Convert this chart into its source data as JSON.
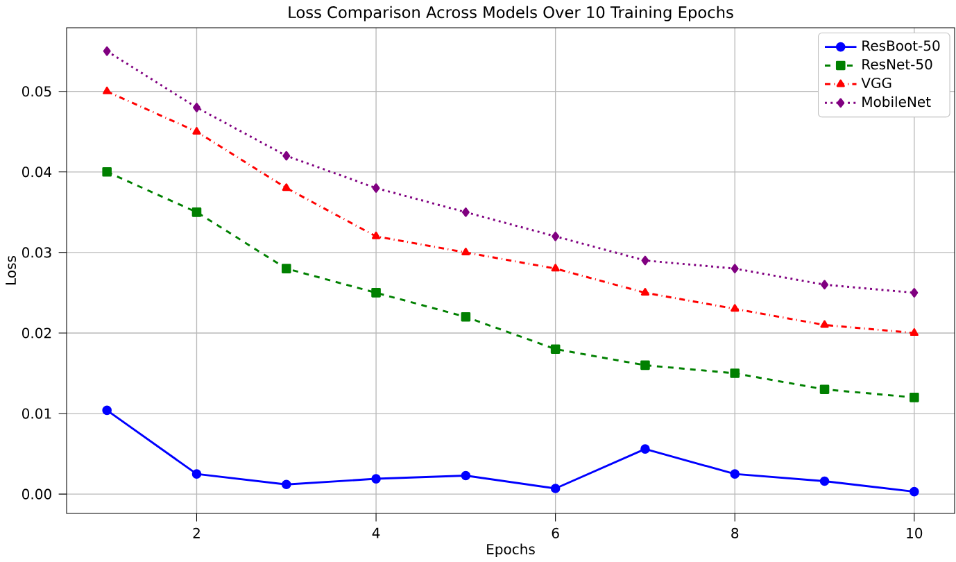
{
  "chart_data": {
    "type": "line",
    "title": "Loss Comparison Across Models Over 10 Training Epochs",
    "xlabel": "Epochs",
    "ylabel": "Loss",
    "x": [
      1,
      2,
      3,
      4,
      5,
      6,
      7,
      8,
      9,
      10
    ],
    "series": [
      {
        "name": "ResBoot-50",
        "color": "#0000ff",
        "marker": "circle",
        "line_style": "solid",
        "values": [
          0.0104,
          0.0025,
          0.0012,
          0.0019,
          0.0023,
          0.0007,
          0.0056,
          0.0025,
          0.0016,
          0.0003
        ]
      },
      {
        "name": "ResNet-50",
        "color": "#008000",
        "marker": "square",
        "line_style": "dashed",
        "values": [
          0.04,
          0.035,
          0.028,
          0.025,
          0.022,
          0.018,
          0.016,
          0.015,
          0.013,
          0.012
        ]
      },
      {
        "name": "VGG",
        "color": "#ff0000",
        "marker": "triangle",
        "line_style": "dashdot",
        "values": [
          0.05,
          0.045,
          0.038,
          0.032,
          0.03,
          0.028,
          0.025,
          0.023,
          0.021,
          0.02
        ]
      },
      {
        "name": "MobileNet",
        "color": "#800080",
        "marker": "diamond",
        "line_style": "dotted",
        "values": [
          0.055,
          0.048,
          0.042,
          0.038,
          0.035,
          0.032,
          0.029,
          0.028,
          0.026,
          0.025
        ]
      }
    ],
    "xlim": [
      0.55,
      10.45
    ],
    "ylim": [
      -0.0024,
      0.0579
    ],
    "xticks": [
      2,
      4,
      6,
      8,
      10
    ],
    "yticks": [
      {
        "value": 0,
        "label": "0.00"
      },
      {
        "value": 0.01,
        "label": "0.01"
      },
      {
        "value": 0.02,
        "label": "0.02"
      },
      {
        "value": 0.03,
        "label": "0.03"
      },
      {
        "value": 0.04,
        "label": "0.04"
      },
      {
        "value": 0.05,
        "label": "0.05"
      }
    ],
    "grid": true,
    "legend": "top right"
  }
}
